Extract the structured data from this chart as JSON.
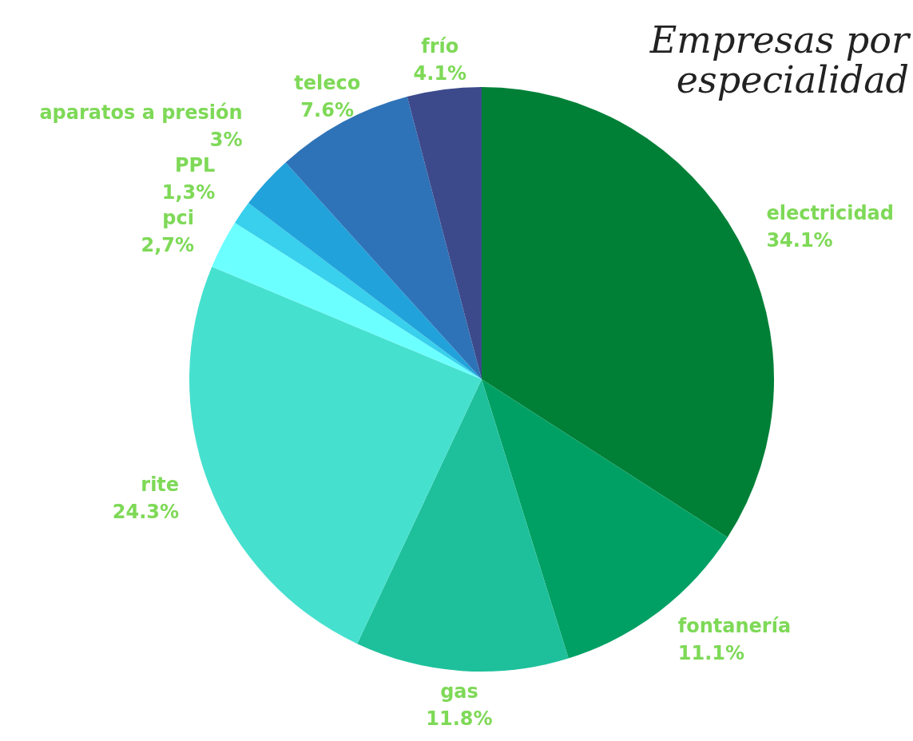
{
  "chart_data": {
    "type": "pie",
    "title": "Empresas por especialidad",
    "categories": [
      "electricidad",
      "fontanería",
      "gas",
      "rite",
      "pci",
      "PPL",
      "aparatos a presión",
      "teleco",
      "frío"
    ],
    "values": [
      34.1,
      11.1,
      11.8,
      24.3,
      2.7,
      1.3,
      3,
      7.6,
      4.1
    ],
    "colors": [
      "#008037",
      "#00a064",
      "#1ec09b",
      "#46e0cf",
      "#6cffff",
      "#38d0ec",
      "#22a2da",
      "#2e73b8",
      "#3c4a8c"
    ],
    "value_labels": [
      "34.1%",
      "11.1%",
      "11.8%",
      "24.3%",
      "2,7%",
      "1,3%",
      "3%",
      "7.6%",
      "4.1%"
    ]
  }
}
